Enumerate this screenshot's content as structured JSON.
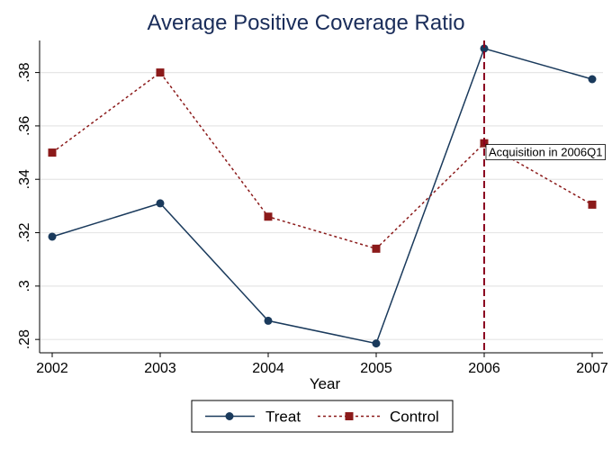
{
  "chart_data": {
    "type": "line",
    "title": "Average Positive Coverage Ratio",
    "xlabel": "Year",
    "ylabel": "",
    "x": [
      2002,
      2003,
      2004,
      2005,
      2006,
      2007
    ],
    "x_tick_labels": [
      "2002",
      "2003",
      "2004",
      "2005",
      "2006",
      "2007"
    ],
    "y_ticks": [
      0.28,
      0.3,
      0.32,
      0.34,
      0.36,
      0.38
    ],
    "y_tick_labels": [
      ".28",
      ".3",
      ".32",
      ".34",
      ".36",
      ".38"
    ],
    "xlim": [
      2002,
      2007
    ],
    "ylim": [
      0.275,
      0.392
    ],
    "grid": true,
    "legend_position": "bottom",
    "series": [
      {
        "name": "Treat",
        "values": [
          0.3185,
          0.331,
          0.287,
          0.2785,
          0.389,
          0.3775
        ],
        "color": "#1a3a5c",
        "line_style": "solid",
        "marker": "circle"
      },
      {
        "name": "Control",
        "values": [
          0.35,
          0.38,
          0.326,
          0.314,
          0.3535,
          0.3305
        ],
        "color": "#8b1a1a",
        "line_style": "dashed",
        "marker": "square"
      }
    ],
    "annotations": [
      {
        "type": "vline",
        "x": 2006,
        "color": "#8b0020",
        "line_style": "dashed",
        "label": "Acquisition in 2006Q1",
        "label_y": 0.35
      }
    ]
  }
}
